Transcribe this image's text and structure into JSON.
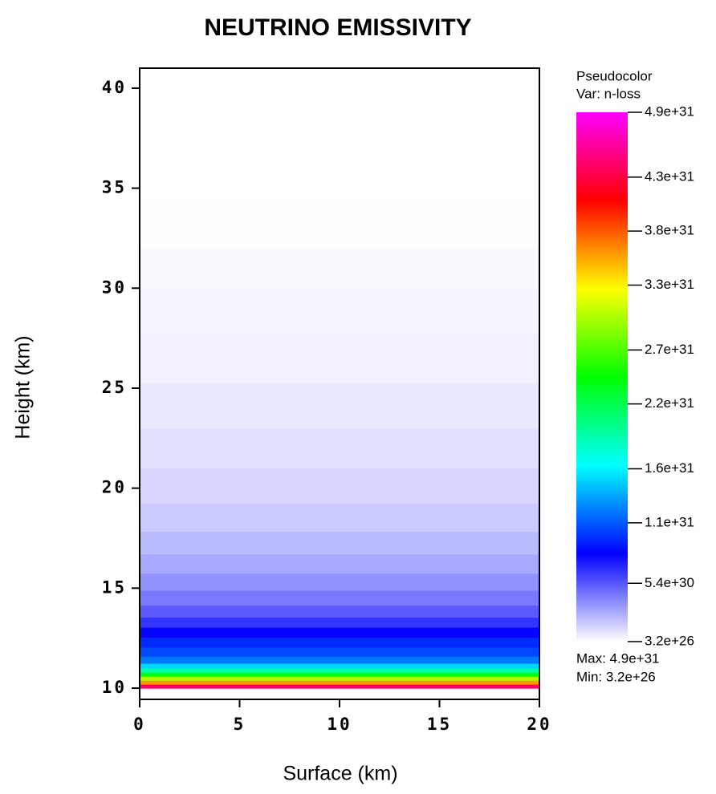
{
  "chart_data": {
    "type": "heatmap-profile",
    "title": "NEUTRINO EMISSIVITY",
    "x_label": "Surface (km)",
    "y_label": "Height (km)",
    "xlim": [
      0,
      20
    ],
    "xticks": [
      0,
      5,
      10,
      15,
      20
    ],
    "ylim": [
      9.44,
      41
    ],
    "yticks": [
      10,
      15,
      20,
      25,
      30,
      35,
      40
    ],
    "y": [
      10.1,
      10.3,
      10.5,
      10.7,
      10.9,
      11.1,
      11.4,
      11.8,
      12.3,
      12.8,
      13.3,
      13.8,
      14.5,
      15.3,
      16.2,
      17.2,
      18.5,
      20,
      22,
      24,
      26.5,
      29,
      31,
      33,
      36,
      40
    ],
    "values": [
      4.4e+31,
      3.6e+31,
      3e+31,
      2.4e+31,
      1.9e+31,
      1.5e+31,
      1.2e+31,
      1.05e+31,
      9.5e+30,
      8e+30,
      6.5e+30,
      5.3e+30,
      4.3e+30,
      3.5e+30,
      2.8e+30,
      2.2e+30,
      1.7e+30,
      1.3e+30,
      9.5e+29,
      7e+29,
      4.8e+29,
      3e+29,
      1.8e+29,
      3e+28,
      1e+27,
      3.2e+26
    ],
    "colormap": [
      "#ffffff",
      "#0000ff",
      "#00ffff",
      "#00ff00",
      "#ffff00",
      "#ff0000",
      "#ff00ff"
    ],
    "legend": {
      "title": "Pseudocolor",
      "var": "Var: n-loss",
      "clim": [
        3.2e+26,
        4.9e+31
      ],
      "ticks": [
        {
          "value": 4.9e+31,
          "label": "4.9e+31"
        },
        {
          "value": 4.3e+31,
          "label": "4.3e+31"
        },
        {
          "value": 3.8e+31,
          "label": "3.8e+31"
        },
        {
          "value": 3.3e+31,
          "label": "3.3e+31"
        },
        {
          "value": 2.7e+31,
          "label": "2.7e+31"
        },
        {
          "value": 2.2e+31,
          "label": "2.2e+31"
        },
        {
          "value": 1.6e+31,
          "label": "1.6e+31"
        },
        {
          "value": 1.1e+31,
          "label": "1.1e+31"
        },
        {
          "value": 5.4e+30,
          "label": "5.4e+30"
        },
        {
          "value": 3.2e+26,
          "label": "3.2e+26"
        }
      ],
      "max": {
        "value": 4.9e+31,
        "label": "Max:  4.9e+31"
      },
      "min": {
        "value": 3.2e+26,
        "label": "Min:  3.2e+26"
      }
    }
  }
}
